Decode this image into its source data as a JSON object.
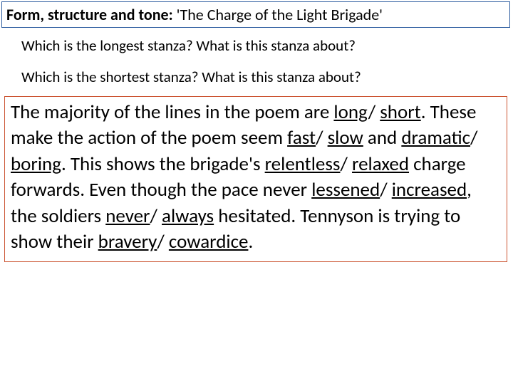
{
  "title": {
    "bold_part": "Form, structure and tone:",
    "regular_part": " 'The Charge of the Light Brigade'",
    "border_color": "#2a5a9e",
    "font_size": 22
  },
  "questions": {
    "q1": "Which is the longest stanza? What is this stanza about?",
    "q2": "Which is the shortest stanza? What is this stanza about?",
    "font_size": 21
  },
  "body": {
    "border_color": "#cc5533",
    "font_size": 27,
    "segments": [
      {
        "text": "The majority of the lines in the poem are ",
        "ul": false
      },
      {
        "text": "long",
        "ul": true
      },
      {
        "text": "/ ",
        "ul": false
      },
      {
        "text": "short",
        "ul": true
      },
      {
        "text": ". These make the action of the poem seem ",
        "ul": false
      },
      {
        "text": "fast",
        "ul": true
      },
      {
        "text": "/ ",
        "ul": false
      },
      {
        "text": "slow",
        "ul": true
      },
      {
        "text": " and ",
        "ul": false
      },
      {
        "text": "dramatic",
        "ul": true
      },
      {
        "text": "/ ",
        "ul": false
      },
      {
        "text": "boring",
        "ul": true
      },
      {
        "text": ". This shows the brigade's ",
        "ul": false
      },
      {
        "text": "relentless",
        "ul": true
      },
      {
        "text": "/ ",
        "ul": false
      },
      {
        "text": "relaxed",
        "ul": true
      },
      {
        "text": " charge forwards. Even though the pace never ",
        "ul": false
      },
      {
        "text": "lessened",
        "ul": true
      },
      {
        "text": "/ ",
        "ul": false
      },
      {
        "text": "increased",
        "ul": true
      },
      {
        "text": ", the soldiers ",
        "ul": false
      },
      {
        "text": "never",
        "ul": true
      },
      {
        "text": "/ ",
        "ul": false
      },
      {
        "text": "always",
        "ul": true
      },
      {
        "text": " hesitated. Tennyson is trying to show their ",
        "ul": false
      },
      {
        "text": "bravery",
        "ul": true
      },
      {
        "text": "/ ",
        "ul": false
      },
      {
        "text": "cowardice",
        "ul": true
      },
      {
        "text": ".",
        "ul": false
      }
    ]
  }
}
